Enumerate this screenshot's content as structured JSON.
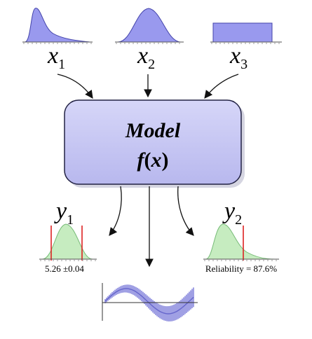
{
  "inputs": [
    {
      "symbol": "x",
      "subscript": "1",
      "distribution": "skewed"
    },
    {
      "symbol": "x",
      "subscript": "2",
      "distribution": "normal"
    },
    {
      "symbol": "x",
      "subscript": "3",
      "distribution": "uniform"
    }
  ],
  "model": {
    "title": "Model",
    "function_name": "f",
    "function_open": "(",
    "function_arg": "x",
    "function_close": ")"
  },
  "outputs": [
    {
      "symbol": "y",
      "subscript": "1",
      "caption": "5.26 ±0.04",
      "distribution": "normal-interval"
    },
    {
      "symbol": "y",
      "subscript": "2",
      "caption": "Reliability = 87.6%",
      "distribution": "skewed-threshold"
    }
  ],
  "colors": {
    "input_fill": "#9999ee",
    "input_stroke": "#3333aa",
    "model_fill": "#c8c8f4",
    "model_stroke": "#222244",
    "output_fill": "#c6ecc0",
    "output_stroke": "#66aa66",
    "marker_line": "#dd2222",
    "time_series": "#8888dd",
    "arrow": "#111111"
  }
}
